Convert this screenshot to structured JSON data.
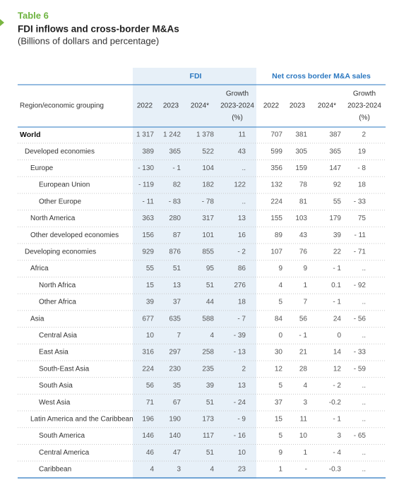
{
  "header": {
    "label": "Table 6",
    "title": "FDI inflows and cross-border M&As",
    "subtitle": "(Billions of dollars and percentage)"
  },
  "table": {
    "groups": [
      "FDI",
      "Net cross border M&A sales"
    ],
    "columns": [
      "Region/economic grouping",
      "2022",
      "2023",
      "2024*",
      [
        "Growth",
        "2023-2024",
        "(%)"
      ],
      "2022",
      "2023",
      "2024*",
      [
        "Growth",
        "2023-2024",
        "(%)"
      ]
    ],
    "rows": [
      [
        "World",
        "1 317",
        "1 242",
        "1 378",
        "11",
        "707",
        "381",
        "387",
        "2"
      ],
      [
        "Developed economies",
        "389",
        "365",
        "522",
        "43",
        "599",
        "305",
        "365",
        "19"
      ],
      [
        "Europe",
        "- 130",
        "- 1",
        "104",
        "..",
        "356",
        "159",
        "147",
        "- 8"
      ],
      [
        "European Union",
        "- 119",
        "82",
        "182",
        "122",
        "132",
        "78",
        "92",
        "18"
      ],
      [
        "Other Europe",
        "- 11",
        "- 83",
        "- 78",
        "..",
        "224",
        "81",
        "55",
        "- 33"
      ],
      [
        "North America",
        "363",
        "280",
        "317",
        "13",
        "155",
        "103",
        "179",
        "75"
      ],
      [
        "Other developed economies",
        "156",
        "87",
        "101",
        "16",
        "89",
        "43",
        "39",
        "- 11"
      ],
      [
        "Developing economies",
        "929",
        "876",
        "855",
        "- 2",
        "107",
        "76",
        "22",
        "- 71"
      ],
      [
        "Africa",
        "55",
        "51",
        "95",
        "86",
        "9",
        "9",
        "- 1",
        ".."
      ],
      [
        "North Africa",
        "15",
        "13",
        "51",
        "276",
        "4",
        "1",
        "0.1",
        "- 92"
      ],
      [
        "Other Africa",
        "39",
        "37",
        "44",
        "18",
        "5",
        "7",
        "- 1",
        ".."
      ],
      [
        "Asia",
        "677",
        "635",
        "588",
        "- 7",
        "84",
        "56",
        "24",
        "- 56"
      ],
      [
        "Central Asia",
        "10",
        "7",
        "4",
        "- 39",
        "0",
        "- 1",
        "0",
        ".."
      ],
      [
        "East Asia",
        "316",
        "297",
        "258",
        "- 13",
        "30",
        "21",
        "14",
        "- 33"
      ],
      [
        "South-East Asia",
        "224",
        "230",
        "235",
        "2",
        "12",
        "28",
        "12",
        "- 59"
      ],
      [
        "South Asia",
        "56",
        "35",
        "39",
        "13",
        "5",
        "4",
        "- 2",
        ".."
      ],
      [
        "West Asia",
        "71",
        "67",
        "51",
        "- 24",
        "37",
        "3",
        "-0.2",
        ".."
      ],
      [
        "Latin America and the Caribbean",
        "196",
        "190",
        "173",
        "- 9",
        "15",
        "11",
        "- 1",
        ".."
      ],
      [
        "South America",
        "146",
        "140",
        "117",
        "- 16",
        "5",
        "10",
        "3",
        "- 65"
      ],
      [
        "Central America",
        "46",
        "47",
        "51",
        "10",
        "9",
        "1",
        "- 4",
        ".."
      ],
      [
        "Caribbean",
        "4",
        "3",
        "4",
        "23",
        "1",
        "-",
        "-0.3",
        ".."
      ]
    ]
  }
}
